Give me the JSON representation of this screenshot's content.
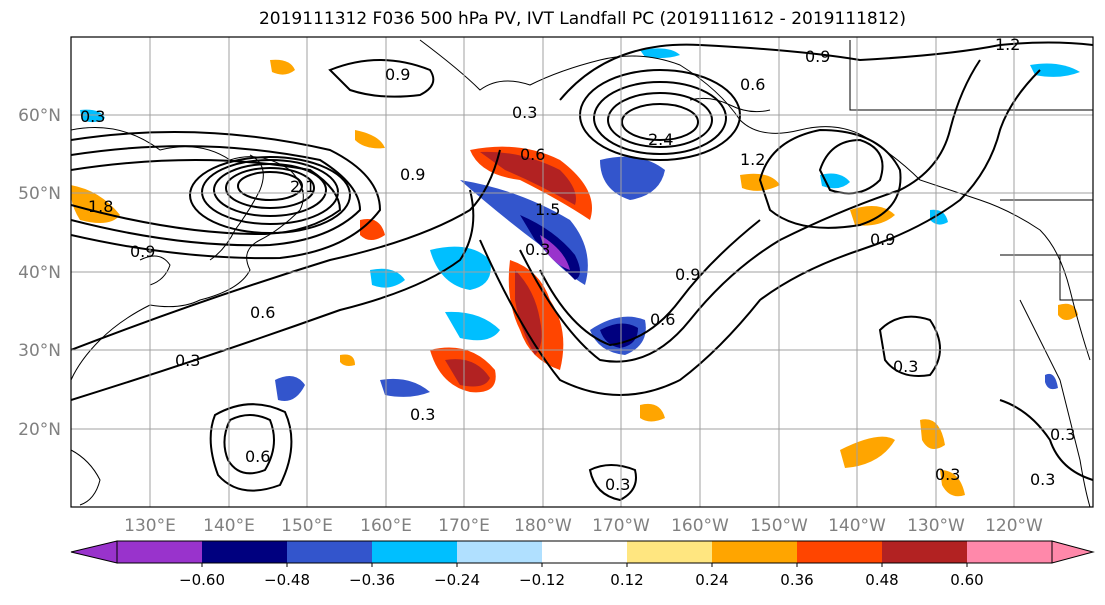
{
  "title": "2019111312 F036 500 hPa PV, IVT Landfall PC (2019111612 - 2019111812)",
  "lat_labels": [
    "60°N",
    "50°N",
    "40°N",
    "30°N",
    "20°N"
  ],
  "lon_labels": [
    "130°E",
    "140°E",
    "150°E",
    "160°E",
    "170°E",
    "180°W",
    "170°W",
    "160°W",
    "150°W",
    "140°W",
    "130°W",
    "120°W"
  ],
  "colorbar": {
    "ticks": [
      "−0.60",
      "−0.48",
      "−0.36",
      "−0.24",
      "−0.12",
      "0.12",
      "0.24",
      "0.36",
      "0.48",
      "0.60"
    ],
    "colors": [
      "#9933cc",
      "#00007f",
      "#3355cc",
      "#00bfff",
      "#b0e0ff",
      "#ffffff",
      "#ffe680",
      "#ffa500",
      "#ff4500",
      "#b22222",
      "#ff88aa"
    ]
  },
  "contour_labels": [
    "0.3",
    "0.9",
    "0.3",
    "0.6",
    "0.9",
    "1.2",
    "0.6",
    "0.9",
    "1.8",
    "0.9",
    "0.6",
    "0.3",
    "0.3",
    "0.3",
    "0.6",
    "0.9",
    "1.2",
    "0.9",
    "1.5",
    "2.1",
    "2.4",
    "0.3",
    "0.6",
    "0.3",
    "0.3",
    "0.3",
    "0.3"
  ],
  "colors": {
    "land_line": "#000000",
    "grid": "#a0a0a0",
    "axis_text": "#808080"
  }
}
